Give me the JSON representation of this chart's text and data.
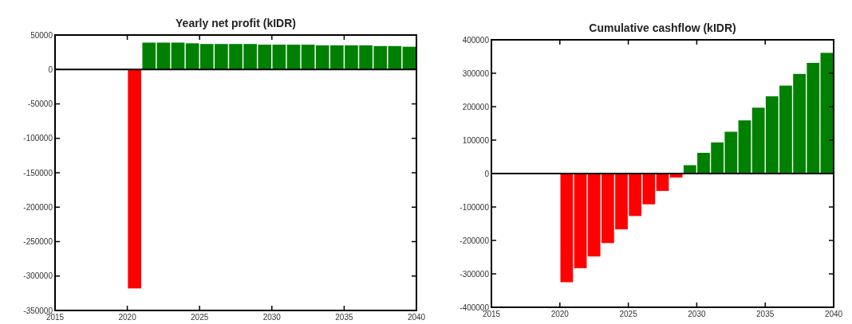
{
  "chart_data": [
    {
      "type": "bar",
      "title": "Yearly net profit (kIDR)",
      "x": [
        2020.5,
        2021.5,
        2022.5,
        2023.5,
        2024.5,
        2025.5,
        2026.5,
        2027.5,
        2028.5,
        2029.5,
        2030.5,
        2031.5,
        2032.5,
        2033.5,
        2034.5,
        2035.5,
        2036.5,
        2037.5,
        2038.5,
        2039.5
      ],
      "values": [
        -318000,
        39000,
        39000,
        39000,
        38000,
        37000,
        37000,
        37000,
        37000,
        36000,
        36000,
        36000,
        36000,
        35000,
        35000,
        35000,
        35000,
        34000,
        34000,
        33000
      ],
      "colors": [
        "#ff0000",
        "#008000",
        "#008000",
        "#008000",
        "#008000",
        "#008000",
        "#008000",
        "#008000",
        "#008000",
        "#008000",
        "#008000",
        "#008000",
        "#008000",
        "#008000",
        "#008000",
        "#008000",
        "#008000",
        "#008000",
        "#008000",
        "#008000"
      ],
      "xlim": [
        2015,
        2040
      ],
      "xticks": [
        2015,
        2020,
        2025,
        2030,
        2035,
        2040
      ],
      "ylim": [
        -350000,
        50000
      ],
      "yticks": [
        -350000,
        -300000,
        -250000,
        -200000,
        -150000,
        -100000,
        -50000,
        0,
        50000
      ],
      "ref_lines": [
        {
          "axis": "y",
          "value": 0,
          "color": "#000000"
        }
      ]
    },
    {
      "type": "bar",
      "title": "Cumulative cashflow (kIDR)",
      "x": [
        2020.5,
        2021.5,
        2022.5,
        2023.5,
        2024.5,
        2025.5,
        2026.5,
        2027.5,
        2028.5,
        2029.5,
        2030.5,
        2031.5,
        2032.5,
        2033.5,
        2034.5,
        2035.5,
        2036.5,
        2037.5,
        2038.5,
        2039.5
      ],
      "values": [
        -325000,
        -283000,
        -248000,
        -208000,
        -167000,
        -127000,
        -92000,
        -52000,
        -12000,
        25000,
        62000,
        93000,
        125000,
        159000,
        197000,
        231000,
        263000,
        298000,
        331000,
        361000
      ],
      "colors": [
        "#ff0000",
        "#ff0000",
        "#ff0000",
        "#ff0000",
        "#ff0000",
        "#ff0000",
        "#ff0000",
        "#ff0000",
        "#ff0000",
        "#008000",
        "#008000",
        "#008000",
        "#008000",
        "#008000",
        "#008000",
        "#008000",
        "#008000",
        "#008000",
        "#008000",
        "#008000"
      ],
      "xlim": [
        2015,
        2040
      ],
      "xticks": [
        2015,
        2020,
        2025,
        2030,
        2035,
        2040
      ],
      "ylim": [
        -400000,
        400000
      ],
      "yticks": [
        -400000,
        -300000,
        -200000,
        -100000,
        0,
        100000,
        200000,
        300000,
        400000
      ],
      "ref_lines": [
        {
          "axis": "y",
          "value": 0,
          "color": "#000000"
        }
      ]
    }
  ]
}
